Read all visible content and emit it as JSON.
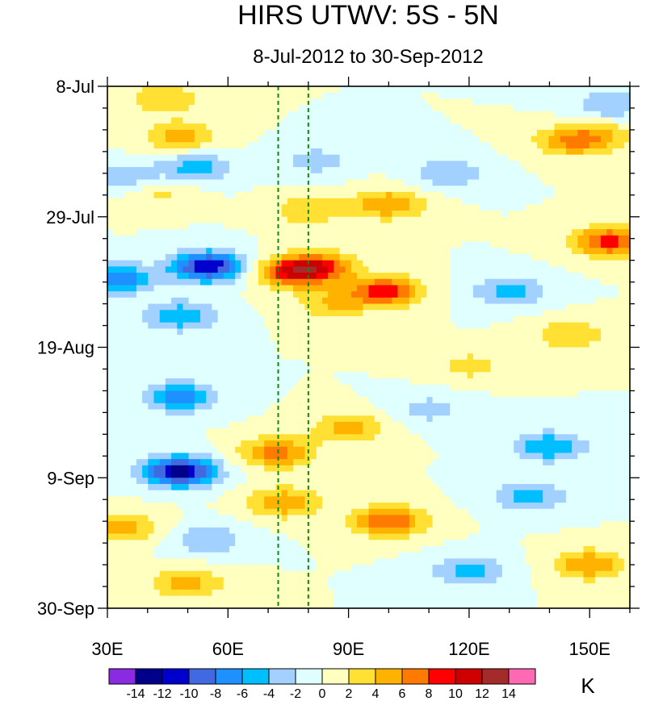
{
  "chart_data": {
    "type": "heatmap",
    "title": "HIRS UTWV: 5S - 5N",
    "subtitle": "8-Jul-2012 to 30-Sep-2012",
    "xlabel": "",
    "ylabel": "",
    "x_axis": {
      "min": 30,
      "max": 160,
      "unit": "degrees east longitude",
      "tick_values": [
        30,
        60,
        90,
        120,
        150
      ],
      "tick_labels": [
        "30E",
        "60E",
        "90E",
        "120E",
        "150E"
      ]
    },
    "y_axis": {
      "start": "8-Jul-2012",
      "end": "30-Sep-2012",
      "days_span": 84,
      "tick_day_offsets": [
        0,
        21,
        42,
        63,
        84
      ],
      "tick_labels": [
        "8-Jul",
        "29-Jul",
        "19-Aug",
        "9-Sep",
        "30-Sep"
      ]
    },
    "reference_lines": [
      {
        "type": "vertical-dashed",
        "x": 72.5,
        "color": "#118811"
      },
      {
        "type": "vertical-dashed",
        "x": 80,
        "color": "#118811"
      }
    ],
    "colorbar": {
      "unit": "K",
      "levels": [
        -14,
        -12,
        -10,
        -8,
        -6,
        -4,
        -2,
        0,
        2,
        4,
        6,
        8,
        10,
        12,
        14
      ],
      "level_labels": [
        "-14",
        "-12",
        "-10",
        "-8",
        "-6",
        "-4",
        "-2",
        "0",
        "2",
        "4",
        "6",
        "8",
        "10",
        "12",
        "14"
      ],
      "colors": [
        "#8a2be2",
        "#00008b",
        "#0000cd",
        "#4169e1",
        "#1e90ff",
        "#00bfff",
        "#a3d1ff",
        "#e0ffff",
        "#ffffc0",
        "#ffe033",
        "#ffb300",
        "#ff7a00",
        "#ff0000",
        "#cc0000",
        "#a52a2a",
        "#ff69b4"
      ]
    },
    "anomaly_features": [
      {
        "lon": 44,
        "day": 2,
        "value": 4
      },
      {
        "lon": 48,
        "day": 8,
        "value": 5
      },
      {
        "lon": 52,
        "day": 13,
        "value": -5
      },
      {
        "lon": 35,
        "day": 15,
        "value": -4
      },
      {
        "lon": 42,
        "day": 17,
        "value": 3
      },
      {
        "lon": 100,
        "day": 19,
        "value": 6
      },
      {
        "lon": 80,
        "day": 20,
        "value": 4
      },
      {
        "lon": 115,
        "day": 14,
        "value": -4
      },
      {
        "lon": 145,
        "day": 9,
        "value": 5
      },
      {
        "lon": 152,
        "day": 8,
        "value": 4
      },
      {
        "lon": 155,
        "day": 25,
        "value": 9
      },
      {
        "lon": 55,
        "day": 29,
        "value": -12
      },
      {
        "lon": 32,
        "day": 31,
        "value": -8
      },
      {
        "lon": 76,
        "day": 30,
        "value": 9
      },
      {
        "lon": 83,
        "day": 29,
        "value": 7
      },
      {
        "lon": 99,
        "day": 33,
        "value": 9
      },
      {
        "lon": 86,
        "day": 35,
        "value": 4
      },
      {
        "lon": 48,
        "day": 37,
        "value": -6
      },
      {
        "lon": 130,
        "day": 33,
        "value": -5
      },
      {
        "lon": 145,
        "day": 40,
        "value": 4
      },
      {
        "lon": 48,
        "day": 50,
        "value": -7
      },
      {
        "lon": 90,
        "day": 55,
        "value": 5
      },
      {
        "lon": 120,
        "day": 45,
        "value": 3
      },
      {
        "lon": 48,
        "day": 62,
        "value": -13
      },
      {
        "lon": 72,
        "day": 59,
        "value": 7
      },
      {
        "lon": 140,
        "day": 58,
        "value": -6
      },
      {
        "lon": 110,
        "day": 52,
        "value": -3
      },
      {
        "lon": 74,
        "day": 67,
        "value": 6
      },
      {
        "lon": 34,
        "day": 71,
        "value": 5
      },
      {
        "lon": 100,
        "day": 70,
        "value": 8
      },
      {
        "lon": 55,
        "day": 73,
        "value": -4
      },
      {
        "lon": 120,
        "day": 78,
        "value": -5
      },
      {
        "lon": 50,
        "day": 80,
        "value": 5
      },
      {
        "lon": 150,
        "day": 77,
        "value": 6
      },
      {
        "lon": 135,
        "day": 66,
        "value": -5
      },
      {
        "lon": 82,
        "day": 12,
        "value": -3
      },
      {
        "lon": 155,
        "day": 3,
        "value": -4
      }
    ]
  }
}
